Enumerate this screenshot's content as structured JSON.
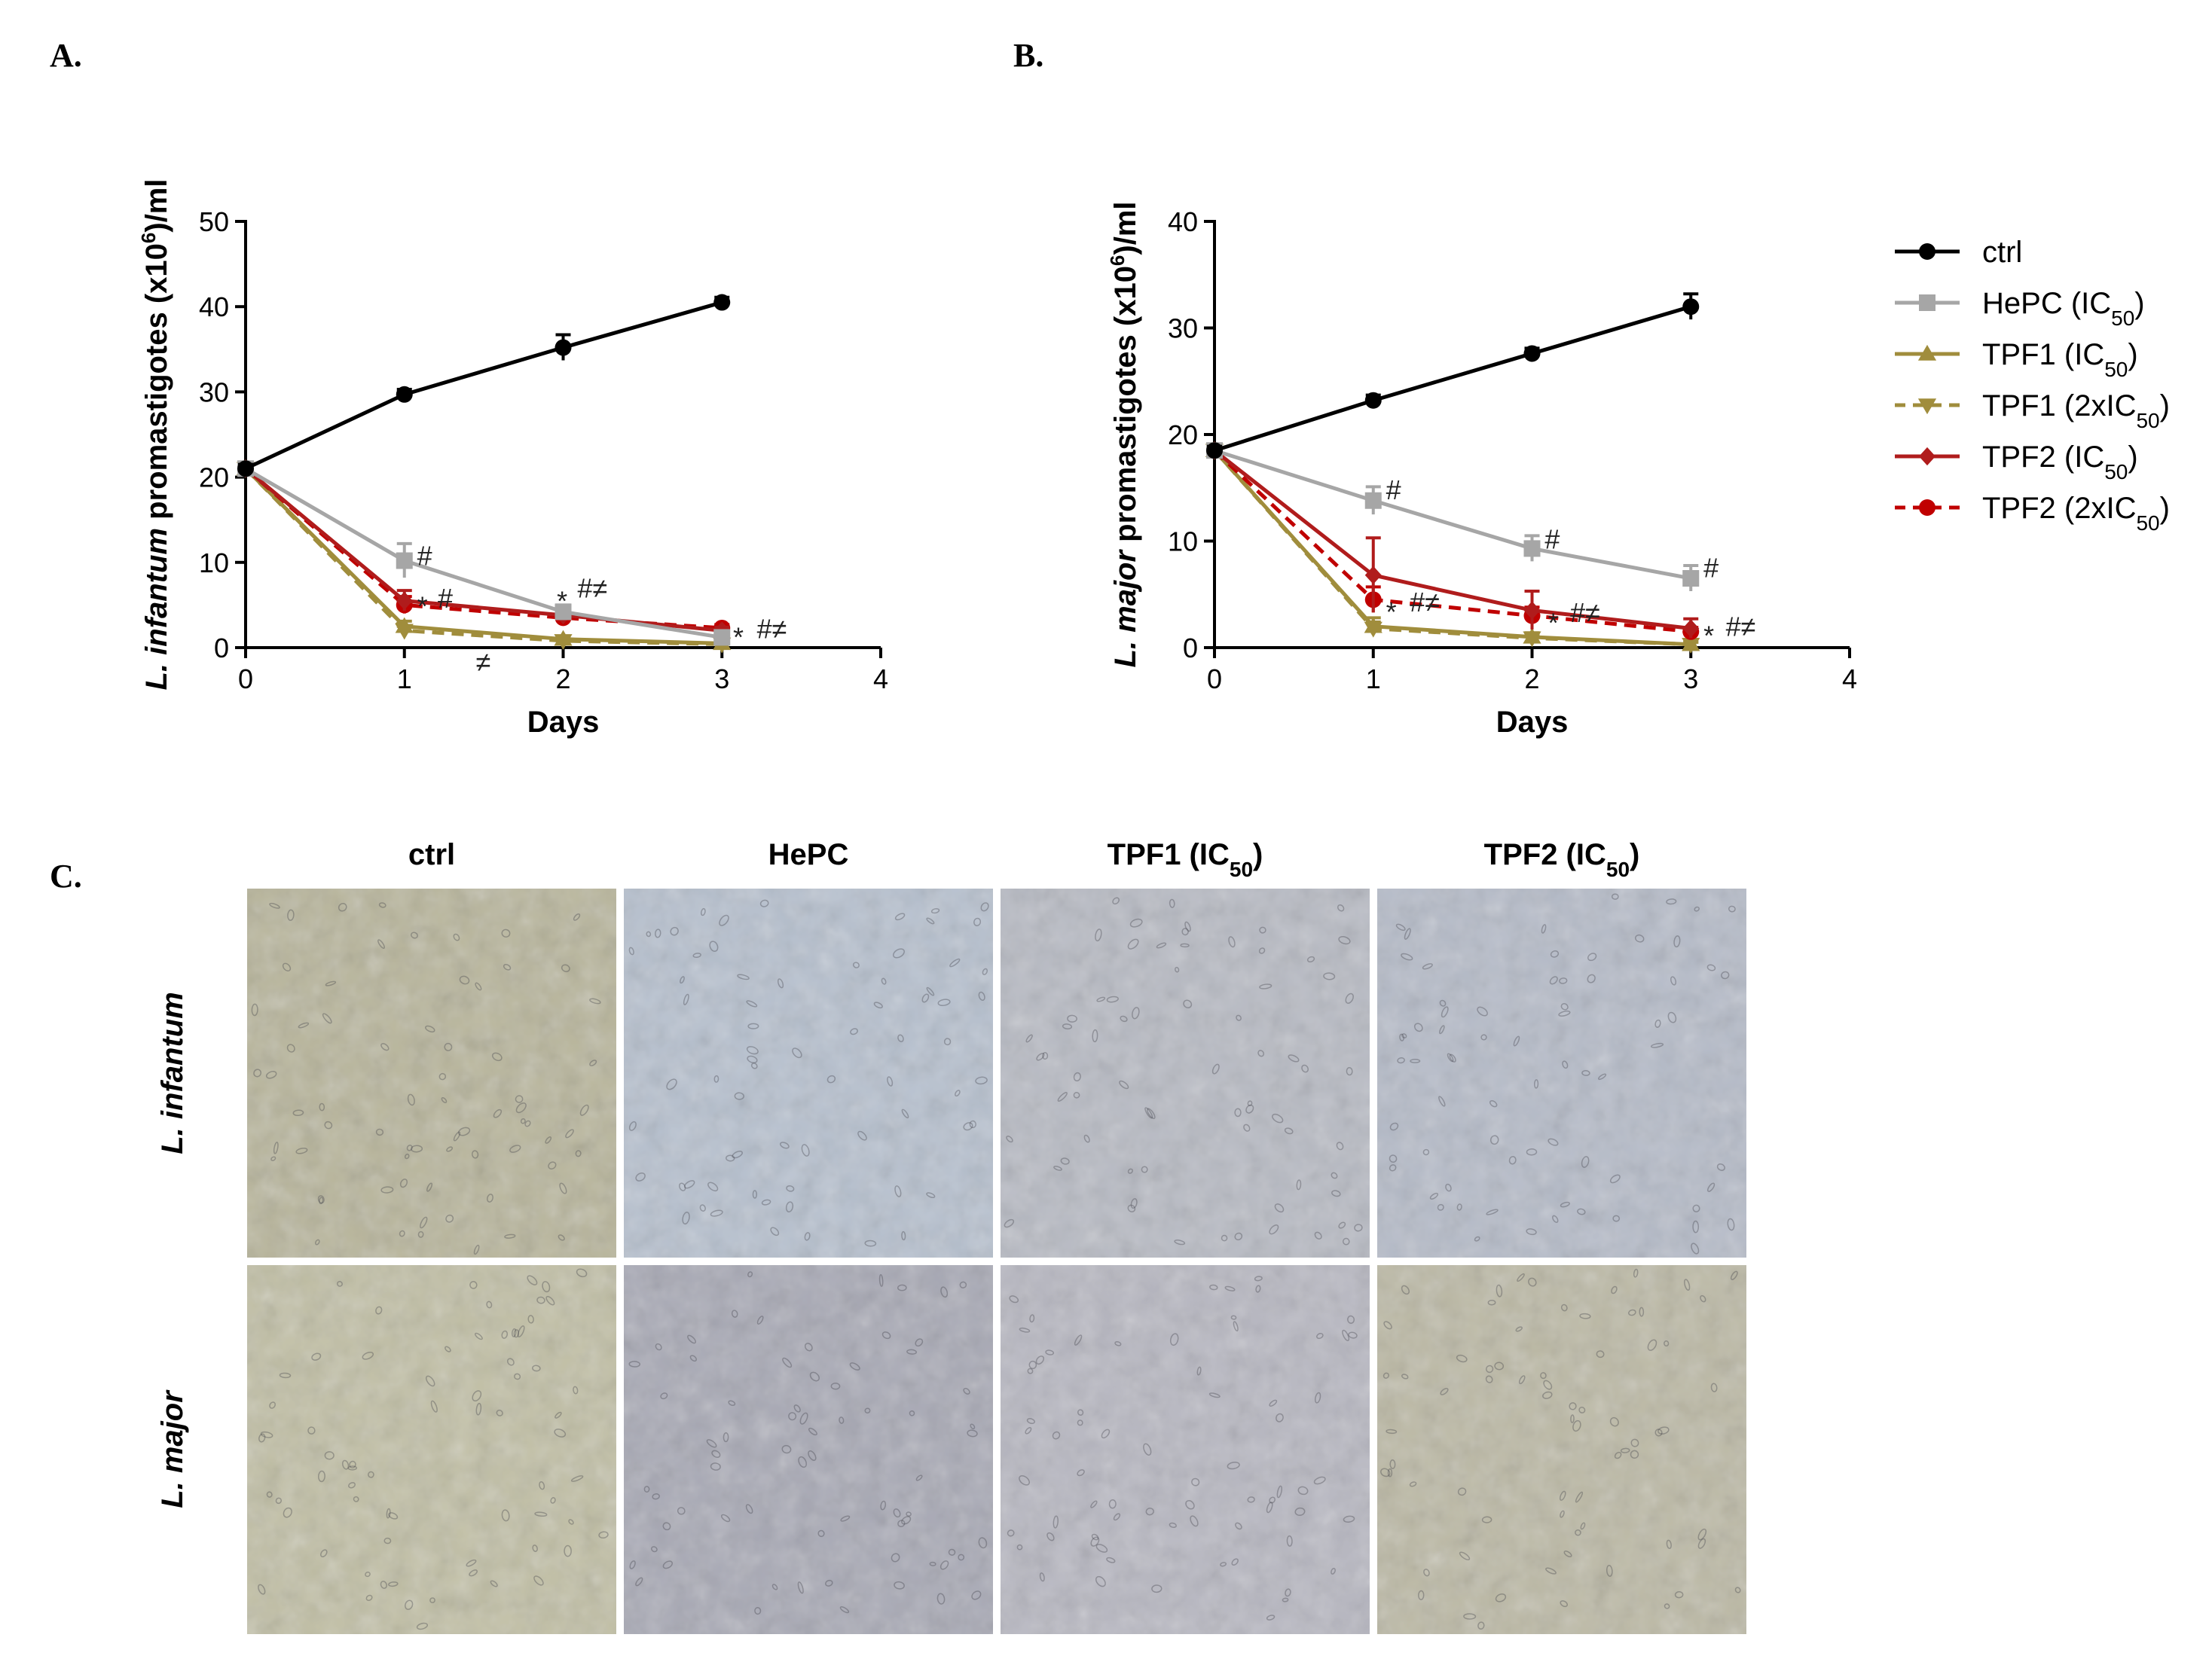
{
  "panels": {
    "a_label": "A.",
    "b_label": "B.",
    "c_label": "C."
  },
  "ann_color": "#222222",
  "chart_data": [
    {
      "type": "line",
      "panel": "A.",
      "xlabel": "Days",
      "ylabel_parts": [
        "L. infantum",
        " promastigotes (x10",
        "6",
        ")/ml"
      ],
      "xlim": [
        0,
        4
      ],
      "ylim": [
        0,
        50
      ],
      "xticks": [
        0,
        1,
        2,
        3,
        4
      ],
      "yticks": [
        0,
        10,
        20,
        30,
        40,
        50
      ],
      "grid": false,
      "series": [
        {
          "key": "ctrl",
          "x": [
            0,
            1,
            2,
            3
          ],
          "y": [
            21,
            29.7,
            35.2,
            40.5
          ],
          "err": [
            0.5,
            0.6,
            1.5,
            0.6
          ]
        },
        {
          "key": "hepc",
          "x": [
            0,
            1,
            2,
            3
          ],
          "y": [
            21,
            10.2,
            4.2,
            1.2
          ],
          "err": [
            0.5,
            2.0,
            0.8,
            0.4
          ]
        },
        {
          "key": "tpf1",
          "x": [
            0,
            1,
            2,
            3
          ],
          "y": [
            21,
            2.5,
            1.0,
            0.5
          ],
          "err": [
            0.5,
            0.6,
            0.3,
            0.2
          ]
        },
        {
          "key": "tpf1x2",
          "x": [
            0,
            1,
            2,
            3
          ],
          "y": [
            21,
            2.0,
            0.8,
            0.4
          ],
          "err": [
            0.5,
            0.5,
            0.3,
            0.2
          ]
        },
        {
          "key": "tpf2",
          "x": [
            0,
            1,
            2,
            3
          ],
          "y": [
            21,
            5.5,
            3.8,
            2.0
          ],
          "err": [
            0.5,
            1.2,
            0.6,
            0.4
          ]
        },
        {
          "key": "tpf2x2",
          "x": [
            0,
            1,
            2,
            3
          ],
          "y": [
            21,
            5.0,
            3.5,
            2.3
          ],
          "err": [
            0.5,
            1.0,
            0.6,
            0.4
          ]
        }
      ],
      "annotations": [
        {
          "text": "#",
          "x": 1.08,
          "y": 10.8,
          "size": 36
        },
        {
          "text": "*",
          "x": 1.08,
          "y": 5.3,
          "size": 50
        },
        {
          "text": "#",
          "x": 1.21,
          "y": 5.8,
          "size": 36
        },
        {
          "text": "*",
          "x": 1.96,
          "y": 5.9,
          "size": 50
        },
        {
          "text": "#≠",
          "x": 2.09,
          "y": 7.0,
          "size": 36
        },
        {
          "text": "≠",
          "x": 1.45,
          "y": -1.8,
          "size": 32
        },
        {
          "text": "*",
          "x": 3.07,
          "y": 1.7,
          "size": 50
        },
        {
          "text": "#≠",
          "x": 3.22,
          "y": 2.2,
          "size": 36
        }
      ]
    },
    {
      "type": "line",
      "panel": "B.",
      "xlabel": "Days",
      "ylabel_parts": [
        "L. major",
        " promastigotes (x10",
        "6",
        ")/ml"
      ],
      "xlim": [
        0,
        4
      ],
      "ylim": [
        0,
        40
      ],
      "xticks": [
        0,
        1,
        2,
        3,
        4
      ],
      "yticks": [
        0,
        10,
        20,
        30,
        40
      ],
      "grid": false,
      "series": [
        {
          "key": "ctrl",
          "x": [
            0,
            1,
            2,
            3
          ],
          "y": [
            18.5,
            23.2,
            27.6,
            32.0
          ],
          "err": [
            0.4,
            0.5,
            0.5,
            1.2
          ]
        },
        {
          "key": "hepc",
          "x": [
            0,
            1,
            2,
            3
          ],
          "y": [
            18.5,
            13.8,
            9.3,
            6.5
          ],
          "err": [
            0.4,
            1.3,
            1.2,
            1.2
          ]
        },
        {
          "key": "tpf1",
          "x": [
            0,
            1,
            2,
            3
          ],
          "y": [
            18.5,
            2.0,
            1.0,
            0.3
          ],
          "err": [
            0.4,
            0.8,
            0.4,
            0.2
          ]
        },
        {
          "key": "tpf1x2",
          "x": [
            0,
            1,
            2,
            3
          ],
          "y": [
            18.5,
            1.8,
            0.9,
            0.3
          ],
          "err": [
            0.4,
            0.6,
            0.3,
            0.2
          ]
        },
        {
          "key": "tpf2",
          "x": [
            0,
            1,
            2,
            3
          ],
          "y": [
            18.5,
            6.8,
            3.5,
            1.8
          ],
          "err": [
            0.4,
            3.5,
            1.8,
            0.9
          ]
        },
        {
          "key": "tpf2x2",
          "x": [
            0,
            1,
            2,
            3
          ],
          "y": [
            18.5,
            4.5,
            3.0,
            1.5
          ],
          "err": [
            0.4,
            1.2,
            0.8,
            0.4
          ]
        }
      ],
      "annotations": [
        {
          "text": "#",
          "x": 1.08,
          "y": 14.8,
          "size": 36
        },
        {
          "text": "*",
          "x": 1.08,
          "y": 3.7,
          "size": 50
        },
        {
          "text": "#≠",
          "x": 1.23,
          "y": 4.3,
          "size": 36
        },
        {
          "text": "#",
          "x": 2.08,
          "y": 10.2,
          "size": 36
        },
        {
          "text": "*",
          "x": 2.1,
          "y": 2.7,
          "size": 50
        },
        {
          "text": "#≠",
          "x": 2.24,
          "y": 3.3,
          "size": 36
        },
        {
          "text": "#",
          "x": 3.08,
          "y": 7.5,
          "size": 36
        },
        {
          "text": "*",
          "x": 3.08,
          "y": 1.5,
          "size": 50
        },
        {
          "text": "#≠",
          "x": 3.22,
          "y": 2.0,
          "size": 36
        }
      ]
    }
  ],
  "legend": {
    "placement": "right",
    "items": [
      {
        "key": "ctrl",
        "label": "ctrl",
        "sub": "",
        "tail": "",
        "color": "#000000",
        "marker": "circle",
        "dash": false
      },
      {
        "key": "hepc",
        "label": "HePC (IC",
        "sub": "50",
        "tail": ")",
        "color": "#a6a6a6",
        "marker": "square",
        "dash": false
      },
      {
        "key": "tpf1",
        "label": "TPF1 (IC",
        "sub": "50",
        "tail": ")",
        "color": "#a08d3c",
        "marker": "triangle-up",
        "dash": false
      },
      {
        "key": "tpf1x2",
        "label": "TPF1 (2xIC",
        "sub": "50",
        "tail": ")",
        "color": "#a08d3c",
        "marker": "triangle-down",
        "dash": true
      },
      {
        "key": "tpf2",
        "label": "TPF2 (IC",
        "sub": "50",
        "tail": ")",
        "color": "#b01c1c",
        "marker": "diamond",
        "dash": false
      },
      {
        "key": "tpf2x2",
        "label": "TPF2 (2xIC",
        "sub": "50",
        "tail": ")",
        "color": "#c00000",
        "marker": "circle",
        "dash": true
      }
    ]
  },
  "micrographs": {
    "columns": [
      {
        "label": "ctrl",
        "sub": "",
        "tail": ""
      },
      {
        "label": "HePC",
        "sub": "",
        "tail": ""
      },
      {
        "label": "TPF1 (IC",
        "sub": "50",
        "tail": ")"
      },
      {
        "label": "TPF2 (IC",
        "sub": "50",
        "tail": ")"
      }
    ],
    "rows": [
      "L. infantum",
      "L. major"
    ],
    "tones": [
      [
        "#b9b69c",
        "#b7c1cf",
        "#b8bbc4",
        "#b6bcc9"
      ],
      [
        "#c2c0a6",
        "#a9aab6",
        "#b8b8c2",
        "#bdbaa6"
      ]
    ]
  }
}
